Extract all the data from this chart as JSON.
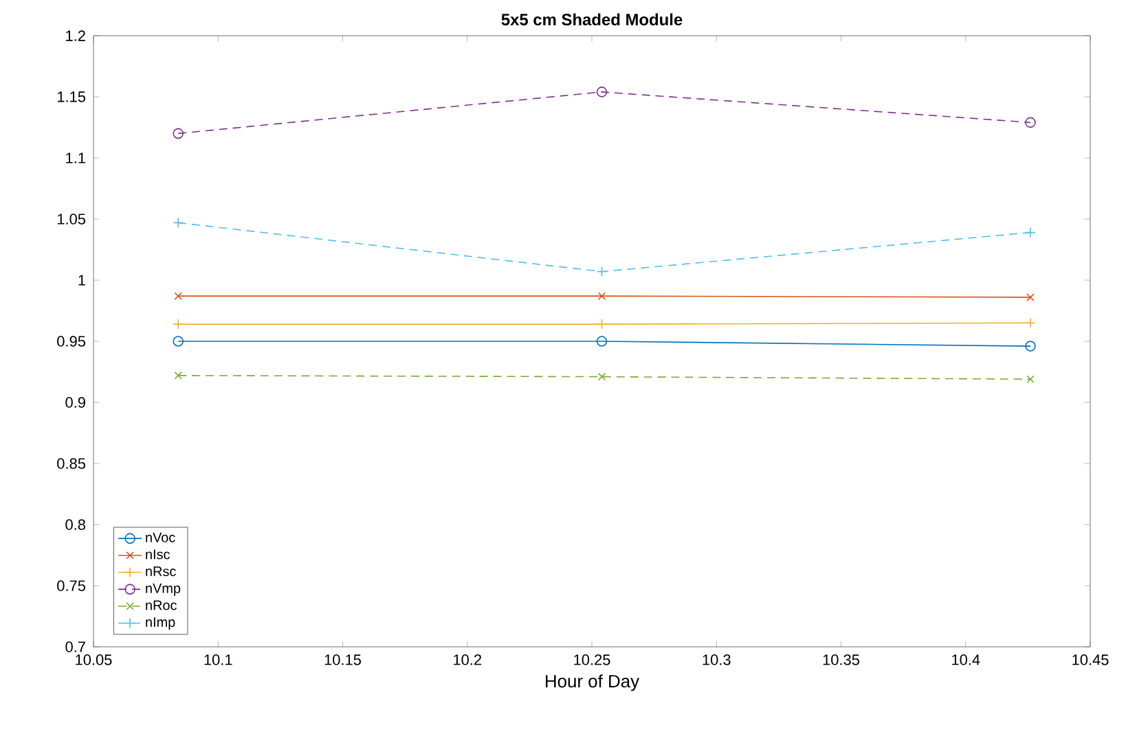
{
  "chart_data": {
    "type": "line",
    "title": "5x5 cm Shaded Module",
    "xlabel": "Hour of Day",
    "x": [
      10.084,
      10.254,
      10.426
    ],
    "xlim": [
      10.05,
      10.45
    ],
    "xticks": [
      10.05,
      10.1,
      10.15,
      10.2,
      10.25,
      10.3,
      10.35,
      10.4,
      10.45
    ],
    "ylim": [
      0.7,
      1.2
    ],
    "yticks": [
      0.7,
      0.75,
      0.8,
      0.85,
      0.9,
      0.95,
      1,
      1.05,
      1.1,
      1.15,
      1.2
    ],
    "legend": "bottom left",
    "grid": false,
    "series": [
      {
        "name": "nVoc",
        "color": "#0072bd",
        "marker": "circle",
        "line_style": "solid",
        "values": [
          0.95,
          0.95,
          0.946
        ]
      },
      {
        "name": "nIsc",
        "color": "#d95319",
        "marker": "cross",
        "line_style": "solid",
        "values": [
          0.987,
          0.987,
          0.986
        ]
      },
      {
        "name": "nRsc",
        "color": "#edb120",
        "marker": "plus",
        "line_style": "solid",
        "values": [
          0.964,
          0.964,
          0.965
        ]
      },
      {
        "name": "nVmp",
        "color": "#7e2f8e",
        "marker": "circle",
        "line_style": "dashed",
        "values": [
          1.12,
          1.154,
          1.129
        ]
      },
      {
        "name": "nRoc",
        "color": "#77ac30",
        "marker": "cross",
        "line_style": "dashed",
        "values": [
          0.922,
          0.921,
          0.919
        ]
      },
      {
        "name": "nImp",
        "color": "#4dbeee",
        "marker": "plus",
        "line_style": "dashed",
        "values": [
          1.047,
          1.007,
          1.039
        ]
      }
    ]
  }
}
